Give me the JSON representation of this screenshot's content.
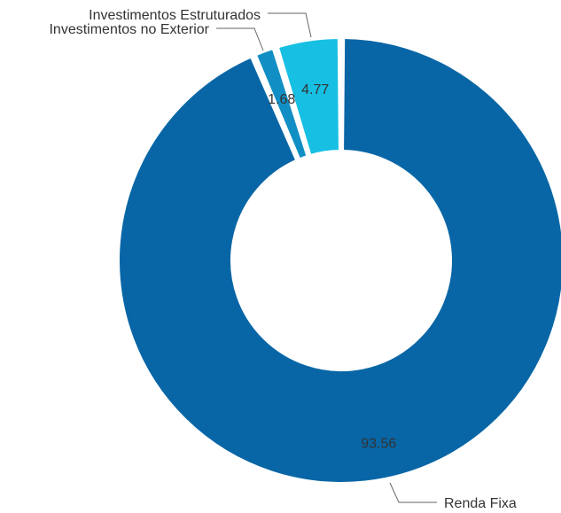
{
  "chart_data": {
    "type": "pie",
    "donut": true,
    "title": "",
    "slices": [
      {
        "label": "Renda Fixa",
        "value": 93.56,
        "value_label": "93.56",
        "color": "#0866A6"
      },
      {
        "label": "Investimentos no Exterior",
        "value": 1.68,
        "value_label": "1.68",
        "color": "#118FC4"
      },
      {
        "label": "Investimentos Estruturados",
        "value": 4.77,
        "value_label": "4.77",
        "color": "#17BFE3"
      }
    ],
    "legend": "none",
    "labels": "outside with leader lines"
  }
}
